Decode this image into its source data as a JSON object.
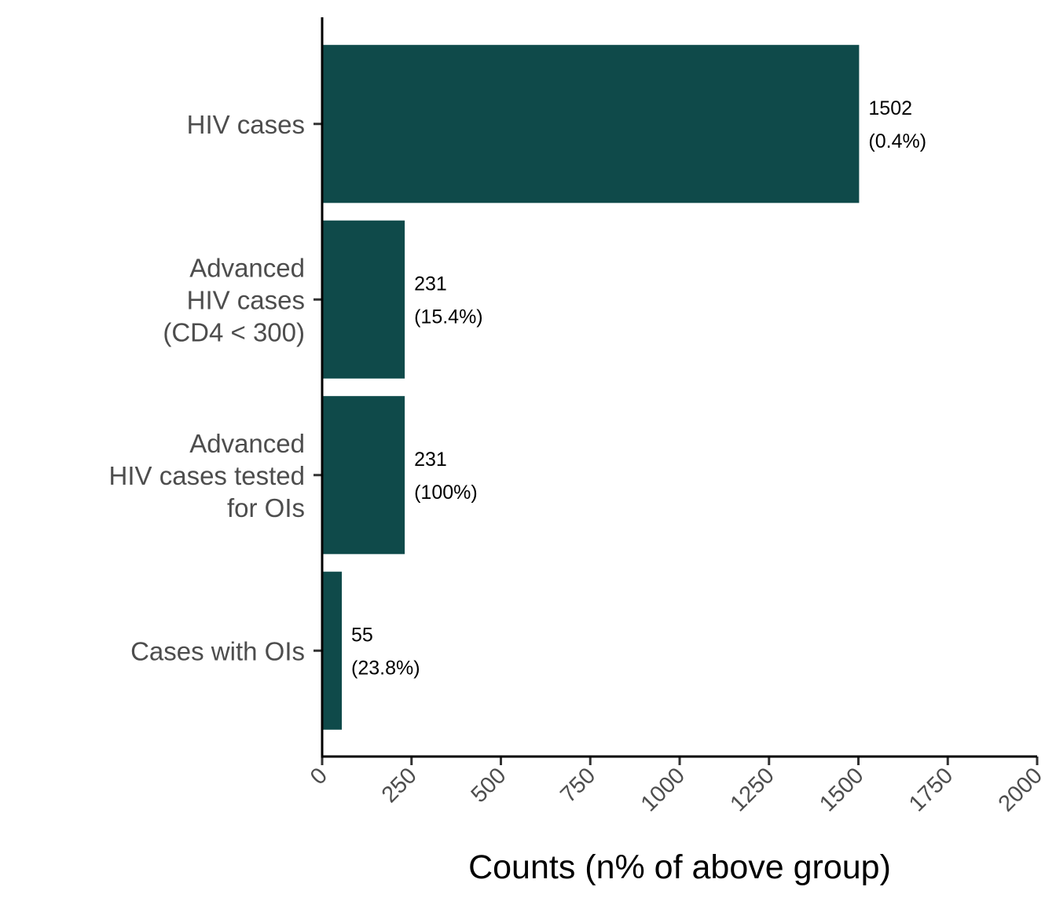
{
  "chart_data": {
    "type": "bar",
    "orientation": "horizontal",
    "categories": [
      [
        "HIV cases"
      ],
      [
        "Advanced",
        "HIV cases",
        "(CD4 < 300)"
      ],
      [
        "Advanced",
        "HIV cases tested",
        "for OIs"
      ],
      [
        "Cases with OIs"
      ]
    ],
    "values": [
      1502,
      231,
      231,
      55
    ],
    "value_labels": [
      "1502",
      "231",
      "231",
      "55"
    ],
    "percent_labels": [
      "(0.4%)",
      "(15.4%)",
      "(100%)",
      "(23.8%)"
    ],
    "xlabel": "Counts (n% of above group)",
    "ylabel": "",
    "xlim": [
      0,
      2000
    ],
    "xticks": [
      0,
      250,
      500,
      750,
      1000,
      1250,
      1500,
      1750,
      2000
    ],
    "xtick_labels": [
      "0",
      "250",
      "500",
      "750",
      "1000",
      "1250",
      "1500",
      "1750",
      "2000"
    ],
    "grid": false,
    "bar_color": "#0f4a4a"
  }
}
